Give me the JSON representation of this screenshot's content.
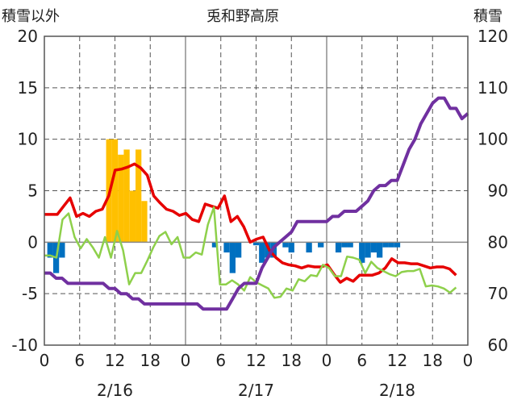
{
  "chart_data": {
    "type": "line",
    "title": "兎和野高原",
    "y_left_label": "積雪以外",
    "y_right_label": "積雪",
    "y_left_range": [
      -10,
      20
    ],
    "y_left_ticks": [
      "20",
      "15",
      "10",
      "5",
      "0",
      "-5",
      "-10"
    ],
    "y_right_range": [
      60,
      120
    ],
    "y_right_ticks": [
      "120",
      "110",
      "100",
      "90",
      "80",
      "70",
      "60"
    ],
    "x_range": [
      0,
      72
    ],
    "x_tick_labels": [
      "0",
      "6",
      "12",
      "18",
      "0",
      "6",
      "12",
      "18",
      "0",
      "6",
      "12",
      "18",
      "0"
    ],
    "date_labels": [
      {
        "text": "2/16",
        "hour": 12
      },
      {
        "text": "2/17",
        "hour": 36
      },
      {
        "text": "2/18",
        "hour": 60
      }
    ],
    "colors": {
      "red": "#e60000",
      "green": "#8ed04b",
      "purple": "#7030a0",
      "orange_bar": "#ffc000",
      "blue_bar": "#0070c0"
    },
    "series": [
      {
        "type": "line",
        "axis": "left",
        "color": "#e60000",
        "values": [
          2.7,
          2.7,
          2.7,
          3.5,
          4.3,
          2.5,
          2.8,
          2.5,
          3,
          3.2,
          4.5,
          7,
          7.1,
          7.3,
          7.6,
          7.2,
          6.5,
          4.5,
          3.8,
          3.2,
          3,
          2.6,
          2.8,
          2.2,
          2,
          3.7,
          3.5,
          3.3,
          4.5,
          2,
          2.5,
          1.5,
          0,
          0.3,
          0.5,
          -0.8,
          -1.5,
          -2,
          -2.2,
          -2.3,
          -2.5,
          -2.3,
          -2.4,
          -2.4,
          -2.2,
          -3.1,
          -3.9,
          -3.5,
          -3.8,
          -3.2,
          -3.2,
          -3.2,
          -3,
          -2.5,
          -1.6,
          -2,
          -2,
          -2.1,
          -2.1,
          -2.3,
          -2.5,
          -2.4,
          -2.4,
          -2.6,
          -3.2
        ]
      },
      {
        "type": "line",
        "axis": "left",
        "color": "#8ed04b",
        "values": [
          -1.3,
          -1.3,
          -1.5,
          2.2,
          2.8,
          0.5,
          -0.6,
          0.3,
          -0.5,
          -1.5,
          0.5,
          -1.5,
          1.1,
          -0.8,
          -4.1,
          -3,
          -3,
          -1.8,
          -0.5,
          0.6,
          1,
          -0.2,
          0.5,
          -1.5,
          -1.5,
          -1,
          -1.2,
          1.7,
          3.4,
          -4.1,
          -4.1,
          -3.7,
          -4.1,
          -4.7,
          -3.4,
          -3.9,
          -4.2,
          -4.5,
          -5.4,
          -5.3,
          -4.5,
          -4.7,
          -3.6,
          -3.8,
          -3.2,
          -3.3,
          -2.2,
          -2.5,
          -3.3,
          -3.3,
          -1.4,
          -1.5,
          -1.7,
          -3,
          -1.9,
          -2.5,
          -2.8,
          -3.1,
          -3.3,
          -2.9,
          -2.8,
          -2.8,
          -2.6,
          -4.3,
          -4.2,
          -4.3,
          -4.5,
          -4.9,
          -4.4
        ]
      },
      {
        "type": "line",
        "axis": "right",
        "color": "#7030a0",
        "values": [
          74,
          74,
          73,
          73,
          72,
          72,
          72,
          72,
          72,
          72,
          72,
          71,
          71,
          70,
          70,
          69,
          69,
          68,
          68,
          68,
          68,
          68,
          68,
          68,
          68,
          68,
          68,
          67,
          67,
          67,
          67,
          67,
          69,
          71,
          72,
          72,
          72,
          75,
          77,
          79,
          80,
          81,
          82,
          84,
          84,
          84,
          84,
          84,
          84,
          85,
          85,
          86,
          86,
          86,
          87,
          88,
          90,
          91,
          91,
          92,
          92,
          95,
          98,
          100,
          103,
          105,
          107,
          108,
          108,
          106,
          106,
          104,
          105
        ],
        "start_hour": 0
      },
      {
        "type": "bar",
        "axis": "left",
        "color": "#ffc000",
        "hours": [
          11,
          12,
          13,
          14,
          15,
          16,
          17
        ],
        "values": [
          10,
          10,
          8.5,
          9,
          5,
          9,
          4
        ]
      },
      {
        "type": "bar",
        "axis": "left",
        "color": "#0070c0",
        "hours": [
          1,
          2,
          3,
          29,
          31,
          32,
          33,
          36,
          37,
          38,
          39,
          41,
          42,
          45,
          47,
          50,
          51,
          52,
          54,
          55,
          56,
          57,
          58,
          59,
          60
        ],
        "values": [
          -1.5,
          -3,
          -1.5,
          -0.5,
          -1,
          -3,
          -1.5,
          -0.3,
          -2,
          -1.5,
          -1.5,
          -0.5,
          -1,
          -1,
          -0.5,
          -1,
          -0.5,
          -0.5,
          -2,
          -1.5,
          -1,
          -1.5,
          -0.5,
          -0.5,
          -0.5
        ]
      }
    ]
  }
}
